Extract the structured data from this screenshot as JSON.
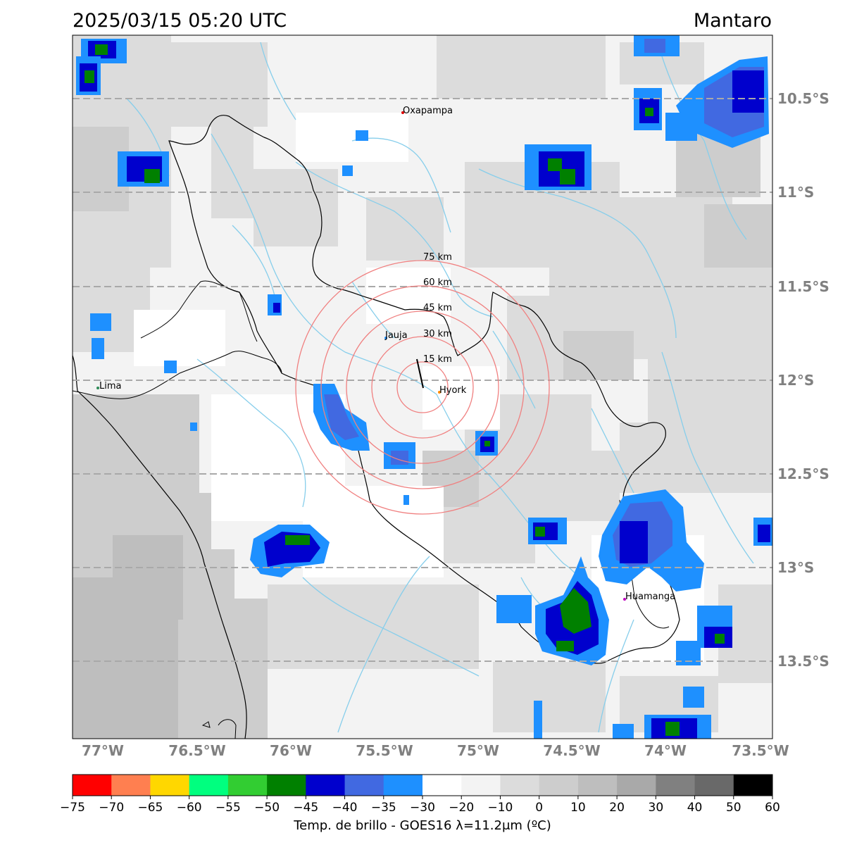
{
  "header": {
    "datetime": "2025/03/15 05:20 UTC",
    "region": "Mantaro"
  },
  "lat_labels": [
    "10.5°S",
    "11°S",
    "11.5°S",
    "12°S",
    "12.5°S",
    "13°S",
    "13.5°S"
  ],
  "lon_labels": [
    "77°W",
    "76.5°W",
    "76°W",
    "75.5°W",
    "75°W",
    "74.5°W",
    "74°W",
    "73.5°W"
  ],
  "towns": {
    "oxapampa": "Oxapampa",
    "jauja": "Jauja",
    "lima": "Lima",
    "hyork": "Hyork",
    "huamanga": "Huamanga"
  },
  "rings": [
    "15 km",
    "30 km",
    "45 km",
    "60 km",
    "75 km"
  ],
  "colorbar": {
    "ticks": [
      "−75",
      "−70",
      "−65",
      "−60",
      "−55",
      "−50",
      "−45",
      "−40",
      "−35",
      "−30",
      "−20",
      "−10",
      "0",
      "10",
      "20",
      "30",
      "40",
      "50",
      "60"
    ],
    "colors": [
      "#ff0000",
      "#ff7f50",
      "#ffd700",
      "#00ff7f",
      "#32cd32",
      "#008000",
      "#0000cd",
      "#4169e1",
      "#1e90ff",
      "#ffffff",
      "#f3f3f3",
      "#dcdcdc",
      "#cdcdcd",
      "#bebebe",
      "#a9a9a9",
      "#808080",
      "#696969",
      "#000000"
    ],
    "label": "Temp. de brillo - GOES16 λ=11.2μm (ºC)"
  }
}
